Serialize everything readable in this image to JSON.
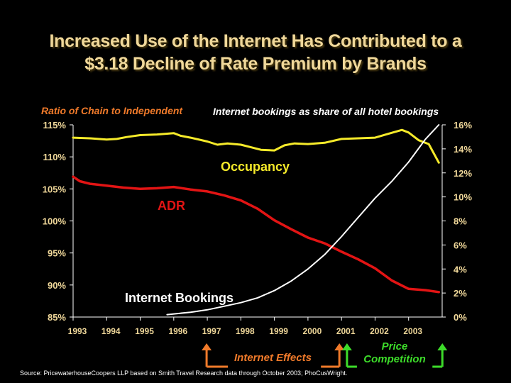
{
  "slide": {
    "title_line1": "Increased Use of the Internet Has Contributed to a",
    "title_line2": "$3.18 Decline of Rate Premium by Brands",
    "source": "Source: PricewaterhouseCoopers LLP based on Smith Travel Research data through October 2003; PhoCusWright.",
    "effects_label": "Internet Effects",
    "competition_label_line1": "Price",
    "competition_label_line2": "Competition"
  },
  "colors": {
    "occupancy": "#f5ea2a",
    "adr": "#e21414",
    "internet": "#ffffff",
    "left_axis_title": "#f07a2a",
    "effects": "#f07a2a",
    "competition": "#3ddc2a",
    "tick_text": "#f0d89a"
  },
  "chart_data": {
    "type": "line",
    "left_axis_title": "Ratio of Chain to Independent",
    "right_axis_title": "Internet bookings as share of all hotel bookings",
    "x_categories": [
      "1993",
      "1994",
      "1995",
      "1996",
      "1997",
      "1998",
      "1999",
      "2000",
      "2001",
      "2002",
      "2003"
    ],
    "x_range": [
      1993,
      2004
    ],
    "ylim_left": [
      85,
      115
    ],
    "ylim_right": [
      0,
      16
    ],
    "left_ticks": [
      "115%",
      "110%",
      "105%",
      "100%",
      "95%",
      "90%",
      "85%"
    ],
    "right_ticks": [
      "16%",
      "14%",
      "12%",
      "10%",
      "8%",
      "6%",
      "4%",
      "2%",
      "0%"
    ],
    "series": [
      {
        "name": "Occupancy",
        "axis": "left",
        "x": [
          1993.0,
          1993.5,
          1994.0,
          1994.3,
          1994.6,
          1995.0,
          1995.5,
          1996.0,
          1996.2,
          1996.5,
          1997.0,
          1997.3,
          1997.6,
          1998.0,
          1998.3,
          1998.6,
          1999.0,
          1999.3,
          1999.6,
          2000.0,
          2000.5,
          2001.0,
          2001.5,
          2002.0,
          2002.4,
          2002.8,
          2003.0,
          2003.3,
          2003.6,
          2003.9
        ],
        "values": [
          113.0,
          112.9,
          112.7,
          112.8,
          113.1,
          113.4,
          113.5,
          113.7,
          113.3,
          113.0,
          112.4,
          111.9,
          112.1,
          111.9,
          111.5,
          111.1,
          111.0,
          111.8,
          112.1,
          112.0,
          112.2,
          112.8,
          112.9,
          113.0,
          113.6,
          114.2,
          113.8,
          112.6,
          112.0,
          109.1
        ]
      },
      {
        "name": "ADR",
        "axis": "left",
        "x": [
          1993.0,
          1993.2,
          1993.5,
          1994.0,
          1994.5,
          1995.0,
          1995.5,
          1996.0,
          1996.5,
          1997.0,
          1997.5,
          1998.0,
          1998.5,
          1999.0,
          1999.5,
          2000.0,
          2000.5,
          2001.0,
          2001.5,
          2002.0,
          2002.5,
          2003.0,
          2003.5,
          2003.9
        ],
        "values": [
          106.9,
          106.2,
          105.8,
          105.5,
          105.2,
          105.0,
          105.1,
          105.3,
          104.9,
          104.6,
          104.0,
          103.2,
          101.9,
          100.1,
          98.7,
          97.4,
          96.5,
          95.2,
          94.0,
          92.6,
          90.7,
          89.4,
          89.2,
          88.9
        ]
      },
      {
        "name": "Internet Bookings",
        "axis": "right",
        "x": [
          1995.8,
          1996.5,
          1997.0,
          1997.5,
          1998.0,
          1998.5,
          1999.0,
          1999.5,
          2000.0,
          2000.5,
          2001.0,
          2001.5,
          2002.0,
          2002.5,
          2003.0,
          2003.5,
          2003.9
        ],
        "values": [
          0.2,
          0.4,
          0.6,
          0.9,
          1.2,
          1.6,
          2.2,
          3.0,
          4.0,
          5.2,
          6.7,
          8.3,
          9.9,
          11.3,
          12.9,
          14.8,
          16.0
        ]
      }
    ],
    "annotations": {
      "occupancy_label": "Occupancy",
      "adr_label": "ADR",
      "internet_label": "Internet Bookings"
    },
    "markers": [
      {
        "name": "Internet Effects start",
        "x": 1997.0
      },
      {
        "name": "Internet Effects end",
        "x": 2001.0
      },
      {
        "name": "Price Competition start",
        "x": 2001.1
      },
      {
        "name": "Price Competition end",
        "x": 2003.9
      }
    ]
  }
}
